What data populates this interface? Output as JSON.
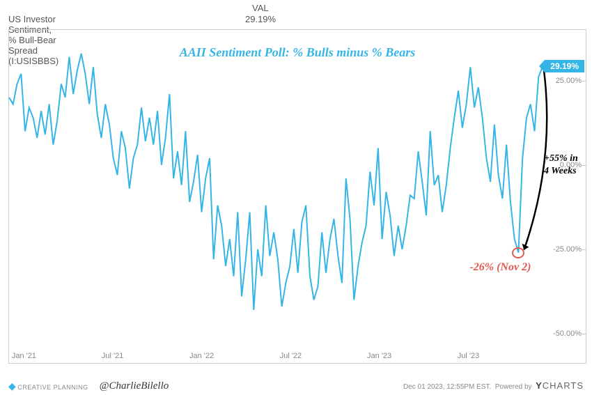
{
  "header": {
    "val_label": "VAL",
    "series_name": "US Investor Sentiment, % Bull-Bear Spread (I:USISBBS)",
    "current_value": "29.19%"
  },
  "chart": {
    "type": "line",
    "title": "AAII Sentiment Poll: % Bulls minus % Bears",
    "line_color": "#35b5e6",
    "line_width": 2,
    "background_color": "#ffffff",
    "border_color": "#cccccc",
    "ylim": [
      -55,
      40
    ],
    "yticks": [
      {
        "v": 25,
        "label": "25.00%"
      },
      {
        "v": 0,
        "label": "0.00%"
      },
      {
        "v": -25,
        "label": "-25.00%"
      },
      {
        "v": -50,
        "label": "-50.00%"
      }
    ],
    "ytick_color": "#888888",
    "ytick_fontsize": 11,
    "x_start": "2020-12",
    "x_end": "2023-12",
    "xticks": [
      {
        "t": 0.028,
        "label": "Jan '21"
      },
      {
        "t": 0.194,
        "label": "Jul '21"
      },
      {
        "t": 0.361,
        "label": "Jan '22"
      },
      {
        "t": 0.528,
        "label": "Jul '22"
      },
      {
        "t": 0.694,
        "label": "Jan '23"
      },
      {
        "t": 0.861,
        "label": "Jul '23"
      }
    ],
    "xtick_color": "#888888",
    "xtick_fontsize": 11,
    "data": [
      20,
      18,
      24,
      27,
      10,
      17,
      14,
      8,
      16,
      9,
      18,
      6,
      13,
      24,
      20,
      32,
      21,
      28,
      33,
      27,
      18,
      29,
      15,
      8,
      18,
      12,
      2,
      -3,
      10,
      5,
      -7,
      2,
      6,
      17,
      7,
      14,
      6,
      16,
      0,
      8,
      21,
      -4,
      4,
      -6,
      10,
      -11,
      -5,
      3,
      -14,
      -4,
      2,
      -28,
      -12,
      -18,
      -30,
      -22,
      -33,
      -14,
      -39,
      -28,
      -14,
      -43,
      -25,
      -33,
      -12,
      -27,
      -20,
      -28,
      -42,
      -35,
      -30,
      -19,
      -32,
      -17,
      -12,
      -33,
      -40,
      -36,
      -20,
      -32,
      -22,
      -16,
      -27,
      -35,
      -4,
      -16,
      -40,
      -30,
      -23,
      -18,
      -2,
      -12,
      5,
      -22,
      -8,
      -15,
      -27,
      -18,
      -25,
      -18,
      -9,
      -10,
      4,
      -5,
      -15,
      10,
      -6,
      -3,
      -14,
      -6,
      5,
      14,
      22,
      11,
      18,
      29,
      17,
      23,
      14,
      2,
      -5,
      12,
      -3,
      -10,
      6,
      -11,
      -22,
      -26,
      2,
      14,
      18,
      10,
      26,
      29.19
    ],
    "badge": {
      "text": "29.19%",
      "bg": "#35b5e6",
      "fg": "#ffffff"
    },
    "annotations": {
      "red_text": "-26% (Nov 2)",
      "red_color": "#e0574f",
      "black_text_line1": "+55% in",
      "black_text_line2": "4 Weeks",
      "arrow_color": "#000000"
    }
  },
  "footer": {
    "creative_planning": "CREATIVE PLANNING",
    "handle": "@CharlieBilello",
    "timestamp": "Dec 01 2023, 12:55PM EST.",
    "powered_by": "Powered by",
    "ycharts": "CHARTS"
  }
}
